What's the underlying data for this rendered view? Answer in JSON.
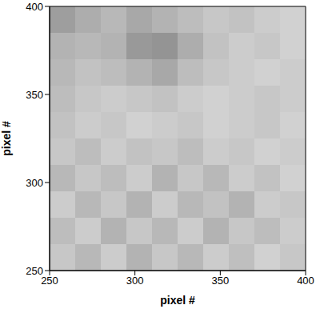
{
  "chart_data": {
    "type": "heatmap",
    "xlabel": "pixel #",
    "ylabel": "pixel #",
    "xlim": [
      250,
      400
    ],
    "ylim": [
      250,
      400
    ],
    "xticks": [
      250,
      300,
      350,
      400
    ],
    "yticks": [
      250,
      300,
      350,
      400
    ],
    "color": "gray",
    "x": [
      257.5,
      272.5,
      287.5,
      302.5,
      317.5,
      332.5,
      347.5,
      362.5,
      377.5,
      392.5
    ],
    "y": [
      257.5,
      272.5,
      287.5,
      302.5,
      317.5,
      332.5,
      347.5,
      362.5,
      377.5,
      392.5
    ],
    "cells": [
      [
        0.78,
        0.72,
        0.8,
        0.7,
        0.78,
        0.72,
        0.8,
        0.75,
        0.82,
        0.78
      ],
      [
        0.74,
        0.8,
        0.7,
        0.78,
        0.72,
        0.8,
        0.7,
        0.78,
        0.74,
        0.8
      ],
      [
        0.8,
        0.72,
        0.78,
        0.7,
        0.8,
        0.72,
        0.76,
        0.7,
        0.8,
        0.78
      ],
      [
        0.72,
        0.78,
        0.74,
        0.8,
        0.7,
        0.78,
        0.72,
        0.8,
        0.76,
        0.82
      ],
      [
        0.78,
        0.74,
        0.8,
        0.76,
        0.78,
        0.74,
        0.8,
        0.78,
        0.82,
        0.8
      ],
      [
        0.76,
        0.8,
        0.78,
        0.82,
        0.8,
        0.78,
        0.82,
        0.8,
        0.78,
        0.82
      ],
      [
        0.74,
        0.78,
        0.8,
        0.78,
        0.76,
        0.8,
        0.82,
        0.8,
        0.78,
        0.8
      ],
      [
        0.72,
        0.76,
        0.74,
        0.7,
        0.66,
        0.74,
        0.78,
        0.8,
        0.82,
        0.8
      ],
      [
        0.7,
        0.72,
        0.7,
        0.6,
        0.58,
        0.68,
        0.76,
        0.8,
        0.78,
        0.82
      ],
      [
        0.62,
        0.68,
        0.72,
        0.66,
        0.7,
        0.74,
        0.78,
        0.76,
        0.8,
        0.82
      ]
    ]
  }
}
